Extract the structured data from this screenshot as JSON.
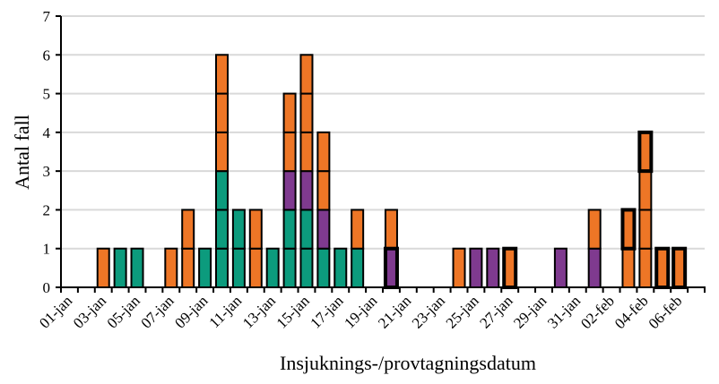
{
  "chart_data": {
    "type": "bar",
    "stacked": true,
    "title": "",
    "xlabel": "Insjuknings-/provtagningsdatum",
    "ylabel": "Antal fall",
    "ylim": [
      0,
      7
    ],
    "yticks": [
      0,
      1,
      2,
      3,
      4,
      5,
      6,
      7
    ],
    "grid": true,
    "legend": null,
    "categories": [
      "01-jan",
      "02-jan",
      "03-jan",
      "04-jan",
      "05-jan",
      "06-jan",
      "07-jan",
      "08-jan",
      "09-jan",
      "10-jan",
      "11-jan",
      "12-jan",
      "13-jan",
      "14-jan",
      "15-jan",
      "16-jan",
      "17-jan",
      "18-jan",
      "19-jan",
      "20-jan",
      "21-jan",
      "22-jan",
      "23-jan",
      "24-jan",
      "25-jan",
      "26-jan",
      "27-jan",
      "28-jan",
      "29-jan",
      "30-jan",
      "31-jan",
      "01-feb",
      "02-feb",
      "03-feb",
      "04-feb",
      "05-feb",
      "06-feb",
      "07-feb"
    ],
    "xtick_labels": [
      "01-jan",
      "03-jan",
      "05-jan",
      "07-jan",
      "09-jan",
      "11-jan",
      "13-jan",
      "15-jan",
      "17-jan",
      "19-jan",
      "21-jan",
      "23-jan",
      "25-jan",
      "27-jan",
      "29-jan",
      "31-jan",
      "02-feb",
      "04-feb",
      "06-feb"
    ],
    "series": [
      {
        "name": "green",
        "color": "#0C9B7D",
        "thick_border": false,
        "values": [
          0,
          0,
          0,
          1,
          1,
          0,
          0,
          0,
          1,
          3,
          2,
          0,
          1,
          2,
          2,
          1,
          1,
          1,
          0,
          0,
          0,
          0,
          0,
          0,
          0,
          0,
          0,
          0,
          0,
          0,
          0,
          0,
          0,
          0,
          0,
          0,
          0,
          0
        ]
      },
      {
        "name": "purple",
        "color": "#7F3A8F",
        "thick_border": false,
        "values": [
          0,
          0,
          0,
          0,
          0,
          0,
          0,
          0,
          0,
          0,
          0,
          0,
          0,
          1,
          1,
          1,
          0,
          0,
          0,
          0,
          0,
          0,
          0,
          0,
          1,
          1,
          0,
          0,
          0,
          1,
          0,
          1,
          0,
          0,
          0,
          0,
          0,
          0
        ]
      },
      {
        "name": "purple-highlighted",
        "color": "#7F3A8F",
        "thick_border": true,
        "values": [
          0,
          0,
          0,
          0,
          0,
          0,
          0,
          0,
          0,
          0,
          0,
          0,
          0,
          0,
          0,
          0,
          0,
          0,
          0,
          1,
          0,
          0,
          0,
          0,
          0,
          0,
          0,
          0,
          0,
          0,
          0,
          0,
          0,
          0,
          0,
          0,
          0,
          0
        ]
      },
      {
        "name": "orange",
        "color": "#EE7626",
        "thick_border": false,
        "values": [
          0,
          0,
          1,
          0,
          0,
          0,
          1,
          2,
          0,
          3,
          0,
          2,
          0,
          2,
          3,
          2,
          0,
          1,
          0,
          1,
          0,
          0,
          0,
          1,
          0,
          0,
          0,
          0,
          0,
          0,
          0,
          1,
          0,
          1,
          3,
          0,
          0,
          0
        ]
      },
      {
        "name": "orange-highlighted",
        "color": "#EE7626",
        "thick_border": true,
        "values": [
          0,
          0,
          0,
          0,
          0,
          0,
          0,
          0,
          0,
          0,
          0,
          0,
          0,
          0,
          0,
          0,
          0,
          0,
          0,
          0,
          0,
          0,
          0,
          0,
          0,
          0,
          1,
          0,
          0,
          0,
          0,
          0,
          0,
          1,
          1,
          1,
          1,
          0
        ]
      }
    ]
  },
  "axes": {
    "y_title": "Antal fall",
    "x_title": "Insjuknings-/provtagningsdatum"
  }
}
